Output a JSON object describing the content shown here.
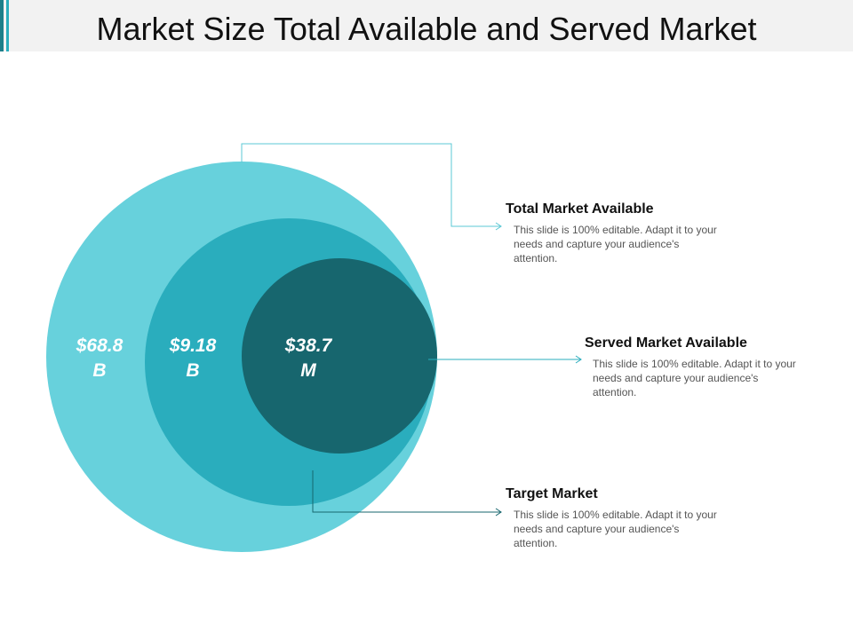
{
  "header": {
    "title": "Market Size Total Available and Served Market"
  },
  "circles": [
    {
      "label": "$68.8 B"
    },
    {
      "label": "$9.18 B"
    },
    {
      "label": "$38.7 M"
    }
  ],
  "items": [
    {
      "title": "Total Market Available",
      "text": "This slide is 100% editable. Adapt it to your needs and capture your audience's attention."
    },
    {
      "title": "Served Market Available",
      "text": "This slide is 100% editable. Adapt it to your needs and capture your audience's attention."
    },
    {
      "title": "Target Market",
      "text": "This slide is 100% editable. Adapt it to your needs and capture your audience's attention."
    }
  ]
}
